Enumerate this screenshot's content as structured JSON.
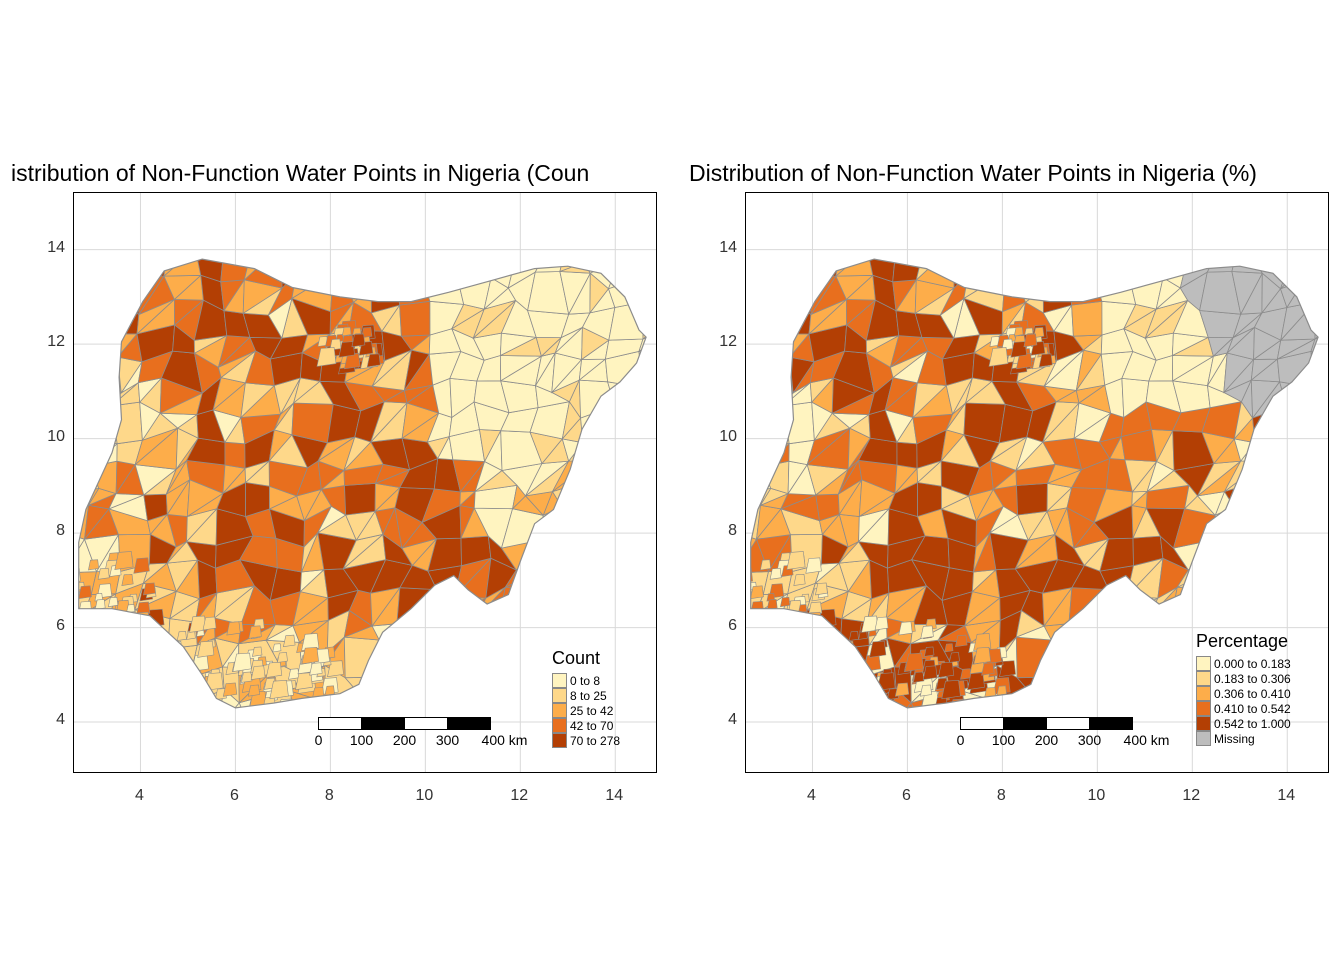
{
  "panels": [
    {
      "id": "count",
      "title": "istribution of Non-Function Water Points in Nigeria (Coun",
      "legend": {
        "title": "Count",
        "items": [
          {
            "label": "0 to 8",
            "color": "#fff4c0"
          },
          {
            "label": "8 to 25",
            "color": "#fed88a"
          },
          {
            "label": "25 to 42",
            "color": "#fdad4a"
          },
          {
            "label": "42 to 70",
            "color": "#e86f1e"
          },
          {
            "label": "70 to 278",
            "color": "#b33f04"
          }
        ]
      }
    },
    {
      "id": "percent",
      "title": "Distribution of Non-Function Water Points in Nigeria (%)",
      "legend": {
        "title": "Percentage",
        "items": [
          {
            "label": "0.000 to 0.183",
            "color": "#fff4c0"
          },
          {
            "label": "0.183 to 0.306",
            "color": "#fed88a"
          },
          {
            "label": "0.306 to 0.410",
            "color": "#fdad4a"
          },
          {
            "label": "0.410 to 0.542",
            "color": "#e86f1e"
          },
          {
            "label": "0.542 to 1.000",
            "color": "#b33f04"
          },
          {
            "label": "Missing",
            "color": "#bdbdbd"
          }
        ]
      }
    }
  ],
  "axes": {
    "x_ticks": [
      "4",
      "6",
      "8",
      "10",
      "12",
      "14"
    ],
    "y_ticks": [
      "4",
      "6",
      "8",
      "10",
      "12",
      "14"
    ]
  },
  "scale_bar": {
    "labels": [
      "0",
      "100",
      "200",
      "300",
      "400 km"
    ]
  },
  "map_data": {
    "lon_range": [
      2.6,
      14.9
    ],
    "lat_range": [
      2.9,
      15.2
    ],
    "grid": true,
    "outline_color": "#8c8c8c"
  }
}
